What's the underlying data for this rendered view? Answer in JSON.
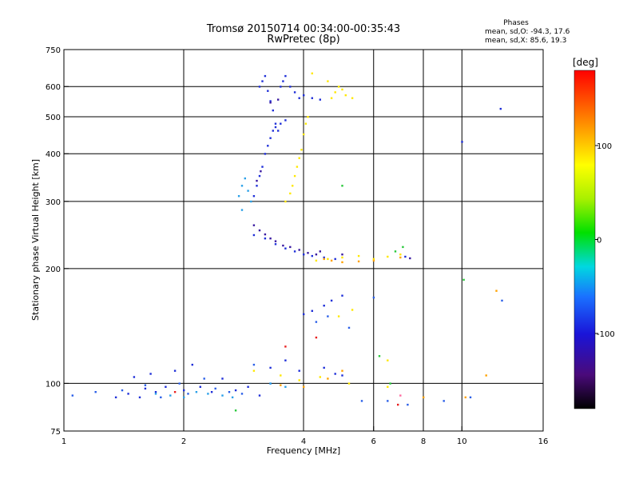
{
  "header": {
    "title_line1": "Tromsø 20150714 00:34:00-00:35:43",
    "title_line2": "RwPretec (8p)",
    "phase_label": "Phases",
    "phase_o": "mean, sd,O: -94.3, 17.6",
    "phase_x": "mean, sd,X: 85.6, 19.3"
  },
  "chart_data": {
    "type": "scatter",
    "xlabel": "Frequency [MHz]",
    "ylabel": "Stationary phase Virtual Height [km]",
    "x_scale": "log",
    "y_scale": "log",
    "xlim": [
      1,
      16
    ],
    "ylim": [
      75,
      750
    ],
    "x_ticks": [
      1,
      2,
      4,
      6,
      8,
      10,
      16
    ],
    "x_tick_labels": [
      "1",
      "2",
      "4",
      "6",
      "8",
      "10",
      "16"
    ],
    "y_ticks": [
      75,
      100,
      200,
      300,
      400,
      500,
      600,
      750
    ],
    "y_tick_labels": [
      "75",
      "100",
      "200",
      "300",
      "400",
      "500",
      "600",
      "750"
    ],
    "grid_x": [
      2,
      4,
      6,
      8,
      10
    ],
    "grid_y": [
      100,
      200,
      300,
      400,
      500,
      600
    ],
    "colorbar": {
      "label": "[deg]",
      "range": [
        -180,
        180
      ],
      "ticks": [
        100,
        0,
        -100
      ],
      "tick_labels": [
        "100",
        "0",
        "-100"
      ],
      "colormap": "rainbow (black-purple-blue-cyan-green-yellow-orange-red)"
    },
    "series": [
      {
        "color": "#1f2fd8",
        "points": [
          [
            1.35,
            92
          ],
          [
            1.45,
            94
          ],
          [
            1.5,
            104
          ],
          [
            1.55,
            92
          ],
          [
            1.6,
            97
          ],
          [
            1.65,
            106
          ],
          [
            1.7,
            95
          ],
          [
            1.8,
            98
          ],
          [
            1.9,
            108
          ],
          [
            2.0,
            96
          ],
          [
            2.1,
            112
          ],
          [
            2.2,
            98
          ],
          [
            2.35,
            95
          ],
          [
            2.5,
            103
          ],
          [
            2.7,
            96
          ],
          [
            2.9,
            98
          ],
          [
            3.1,
            93
          ],
          [
            3.3,
            110
          ],
          [
            3.6,
            115
          ],
          [
            3.9,
            108
          ],
          [
            4.5,
            110
          ],
          [
            4.8,
            106
          ],
          [
            5.0,
            105
          ],
          [
            3.1,
            600
          ],
          [
            3.15,
            620
          ],
          [
            3.2,
            640
          ],
          [
            3.25,
            585
          ],
          [
            3.3,
            550
          ],
          [
            3.35,
            520
          ],
          [
            3.4,
            480
          ],
          [
            3.45,
            460
          ],
          [
            3.5,
            600
          ],
          [
            3.55,
            620
          ],
          [
            3.6,
            640
          ],
          [
            3.7,
            600
          ],
          [
            3.8,
            580
          ],
          [
            3.9,
            560
          ],
          [
            4.0,
            570
          ],
          [
            4.2,
            560
          ],
          [
            4.4,
            555
          ],
          [
            3.0,
            310
          ],
          [
            3.05,
            330
          ],
          [
            3.1,
            350
          ],
          [
            3.15,
            370
          ],
          [
            3.2,
            400
          ],
          [
            3.25,
            420
          ],
          [
            3.3,
            440
          ],
          [
            3.35,
            460
          ],
          [
            3.4,
            470
          ],
          [
            3.5,
            480
          ],
          [
            3.6,
            490
          ],
          [
            3.0,
            245
          ],
          [
            3.2,
            240
          ],
          [
            3.4,
            232
          ],
          [
            3.6,
            226
          ],
          [
            3.8,
            222
          ],
          [
            4.0,
            218
          ],
          [
            4.2,
            216
          ],
          [
            4.5,
            214
          ],
          [
            4.8,
            212
          ],
          [
            7.2,
            215
          ],
          [
            4.0,
            152
          ],
          [
            4.2,
            155
          ],
          [
            4.5,
            160
          ],
          [
            4.7,
            165
          ],
          [
            5.0,
            170
          ],
          [
            10.0,
            430
          ],
          [
            12.5,
            525
          ]
        ]
      },
      {
        "color": "#2a5fe8",
        "points": [
          [
            1.05,
            93
          ],
          [
            1.2,
            95
          ],
          [
            1.4,
            96
          ],
          [
            1.6,
            99
          ],
          [
            1.75,
            92
          ],
          [
            1.95,
            100
          ],
          [
            2.05,
            94
          ],
          [
            2.25,
            103
          ],
          [
            2.4,
            97
          ],
          [
            2.6,
            95
          ],
          [
            2.8,
            94
          ],
          [
            3.0,
            112
          ],
          [
            3.3,
            100
          ],
          [
            4.3,
            145
          ],
          [
            4.6,
            150
          ],
          [
            5.2,
            140
          ],
          [
            5.6,
            90
          ],
          [
            6.5,
            90
          ],
          [
            7.3,
            88
          ],
          [
            9.0,
            90
          ],
          [
            10.5,
            92
          ],
          [
            6.0,
            168
          ],
          [
            12.6,
            165
          ]
        ]
      },
      {
        "color": "#3a1aa0",
        "points": [
          [
            3.0,
            260
          ],
          [
            3.1,
            252
          ],
          [
            3.2,
            246
          ],
          [
            3.3,
            240
          ],
          [
            3.4,
            236
          ],
          [
            3.55,
            230
          ],
          [
            3.7,
            228
          ],
          [
            3.9,
            224
          ],
          [
            4.1,
            220
          ],
          [
            4.3,
            218
          ],
          [
            4.4,
            222
          ],
          [
            5.0,
            218
          ],
          [
            7.4,
            213
          ],
          [
            3.05,
            340
          ],
          [
            3.12,
            360
          ],
          [
            3.3,
            545
          ],
          [
            3.45,
            555
          ]
        ]
      },
      {
        "color": "#2aa0e8",
        "points": [
          [
            1.7,
            94
          ],
          [
            1.85,
            93
          ],
          [
            2.0,
            92
          ],
          [
            2.15,
            95
          ],
          [
            2.3,
            94
          ],
          [
            2.5,
            93
          ],
          [
            2.65,
            92
          ],
          [
            2.75,
            310
          ],
          [
            2.8,
            330
          ],
          [
            2.85,
            345
          ],
          [
            2.9,
            320
          ],
          [
            2.95,
            300
          ],
          [
            2.8,
            285
          ],
          [
            3.3,
            100
          ],
          [
            3.6,
            98
          ]
        ]
      },
      {
        "color": "#ffe800",
        "points": [
          [
            3.6,
            300
          ],
          [
            3.7,
            315
          ],
          [
            3.75,
            330
          ],
          [
            3.8,
            350
          ],
          [
            3.85,
            370
          ],
          [
            3.9,
            390
          ],
          [
            3.95,
            410
          ],
          [
            4.0,
            450
          ],
          [
            4.05,
            480
          ],
          [
            4.1,
            500
          ],
          [
            4.7,
            560
          ],
          [
            4.8,
            580
          ],
          [
            4.9,
            600
          ],
          [
            5.0,
            590
          ],
          [
            5.1,
            570
          ],
          [
            5.3,
            560
          ],
          [
            4.6,
            620
          ],
          [
            4.2,
            650
          ],
          [
            4.3,
            210
          ],
          [
            4.6,
            212
          ],
          [
            5.0,
            214
          ],
          [
            5.5,
            216
          ],
          [
            6.0,
            212
          ],
          [
            6.5,
            215
          ],
          [
            7.0,
            218
          ],
          [
            5.3,
            156
          ],
          [
            4.9,
            150
          ],
          [
            3.0,
            108
          ],
          [
            3.5,
            105
          ],
          [
            3.9,
            102
          ],
          [
            4.4,
            104
          ],
          [
            5.2,
            100
          ],
          [
            6.5,
            98
          ],
          [
            6.5,
            115
          ]
        ]
      },
      {
        "color": "#ffa200",
        "points": [
          [
            4.5,
            212
          ],
          [
            4.7,
            210
          ],
          [
            5.0,
            208
          ],
          [
            5.5,
            209
          ],
          [
            6.0,
            210
          ],
          [
            7.0,
            214
          ],
          [
            3.5,
            99
          ],
          [
            4.0,
            98
          ],
          [
            4.6,
            103
          ],
          [
            5.0,
            108
          ],
          [
            8.0,
            92
          ],
          [
            10.2,
            92
          ],
          [
            11.5,
            105
          ],
          [
            12.2,
            175
          ]
        ]
      },
      {
        "color": "#27c83a",
        "points": [
          [
            6.8,
            222
          ],
          [
            7.1,
            228
          ],
          [
            2.7,
            85
          ],
          [
            6.2,
            118
          ],
          [
            6.6,
            100
          ],
          [
            10.1,
            187
          ],
          [
            5.0,
            330
          ]
        ]
      },
      {
        "color": "#e82020",
        "points": [
          [
            4.3,
            132
          ],
          [
            3.6,
            125
          ],
          [
            1.9,
            95
          ],
          [
            6.9,
            88
          ]
        ]
      },
      {
        "color": "#ff6aa0",
        "points": [
          [
            7.0,
            93
          ]
        ]
      }
    ]
  }
}
